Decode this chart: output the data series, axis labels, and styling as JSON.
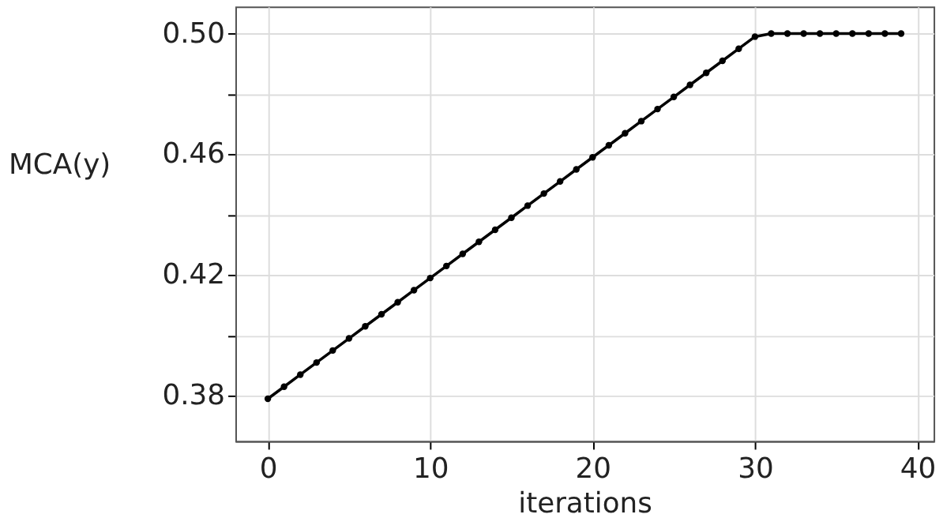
{
  "chart_data": {
    "type": "line",
    "xlabel": "iterations",
    "ylabel": "MCA(y)",
    "x": [
      0,
      1,
      2,
      3,
      4,
      5,
      6,
      7,
      8,
      9,
      10,
      11,
      12,
      13,
      14,
      15,
      16,
      17,
      18,
      19,
      20,
      21,
      22,
      23,
      24,
      25,
      26,
      27,
      28,
      29,
      30,
      31,
      32,
      33,
      34,
      35,
      36,
      37,
      38,
      39
    ],
    "series": [
      {
        "color": "#000000",
        "values": [
          0.379,
          0.383,
          0.387,
          0.391,
          0.395,
          0.399,
          0.403,
          0.407,
          0.411,
          0.415,
          0.419,
          0.423,
          0.427,
          0.431,
          0.435,
          0.439,
          0.443,
          0.447,
          0.451,
          0.455,
          0.459,
          0.463,
          0.467,
          0.471,
          0.475,
          0.479,
          0.483,
          0.487,
          0.491,
          0.495,
          0.499,
          0.5,
          0.5,
          0.5,
          0.5,
          0.5,
          0.5,
          0.5,
          0.5,
          0.5
        ]
      }
    ],
    "xlim": [
      -2,
      41
    ],
    "xticks": [
      0,
      10,
      20,
      30,
      40
    ],
    "ylim": [
      0.365,
      0.509
    ],
    "yticks": [
      {
        "value": 0.38,
        "label": "0.38"
      },
      {
        "value": 0.4,
        "label": null
      },
      {
        "value": 0.42,
        "label": "0.42"
      },
      {
        "value": 0.44,
        "label": null
      },
      {
        "value": 0.46,
        "label": "0.46"
      },
      {
        "value": 0.48,
        "label": null
      },
      {
        "value": 0.5,
        "label": "0.50"
      }
    ],
    "grid": true,
    "marker": "circle",
    "line_style": "solid"
  }
}
